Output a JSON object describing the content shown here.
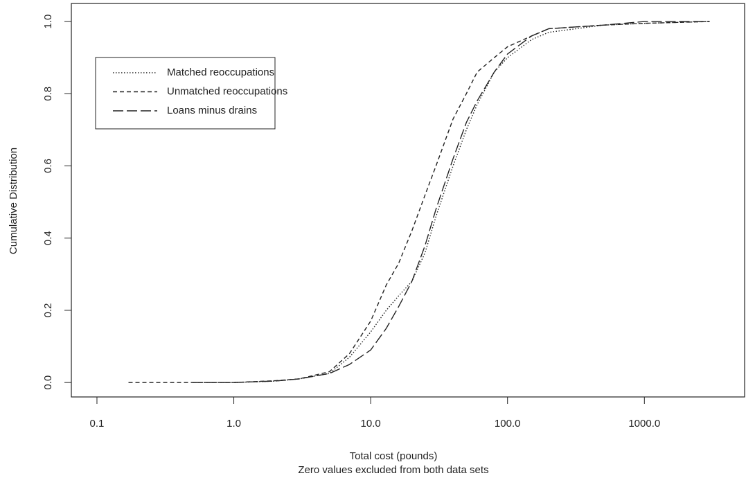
{
  "chart_data": {
    "type": "line",
    "xlabel": "Total cost (pounds)",
    "xlabel_note": "Zero values excluded from both data sets",
    "ylabel": "Cumulative Distribution",
    "xscale": "log",
    "xlim": [
      0.065,
      5400
    ],
    "ylim": [
      -0.04,
      1.05
    ],
    "xticks": [
      0.1,
      {
        "value": 1,
        "label": "1.0"
      },
      {
        "value": 10,
        "label": "10.0"
      },
      {
        "value": 100,
        "label": "100.0"
      },
      {
        "value": 1000,
        "label": "1000.0"
      }
    ],
    "yticks": [
      {
        "value": 0,
        "label": "0.0"
      },
      0.2,
      0.4,
      0.6,
      0.8,
      {
        "value": 1,
        "label": "1.0"
      }
    ],
    "grid": false,
    "legend": "upper left",
    "series": [
      {
        "name": "Matched reoccupations",
        "color": "#222222",
        "dash": "dotted",
        "x": [
          0.5,
          1,
          2,
          3,
          5,
          7,
          10,
          13,
          16,
          20,
          25,
          30,
          40,
          50,
          60,
          80,
          100,
          150,
          200,
          500,
          1000,
          3000
        ],
        "values": [
          0,
          0,
          0.004,
          0.01,
          0.025,
          0.07,
          0.14,
          0.2,
          0.24,
          0.28,
          0.36,
          0.46,
          0.6,
          0.7,
          0.77,
          0.86,
          0.9,
          0.95,
          0.97,
          0.99,
          0.995,
          1
        ]
      },
      {
        "name": "Unmatched reoccupations",
        "color": "#222222",
        "dash": "dashed",
        "x": [
          0.17,
          1,
          2,
          3,
          5,
          7,
          10,
          13,
          16,
          20,
          25,
          30,
          40,
          50,
          60,
          80,
          100,
          150,
          200,
          500,
          1000,
          3000
        ],
        "values": [
          0,
          0,
          0.005,
          0.01,
          0.03,
          0.08,
          0.17,
          0.27,
          0.33,
          0.42,
          0.52,
          0.6,
          0.73,
          0.8,
          0.86,
          0.9,
          0.93,
          0.96,
          0.98,
          0.99,
          0.995,
          1
        ]
      },
      {
        "name": "Loans minus drains",
        "color": "#222222",
        "dash": "longdash",
        "x": [
          0.5,
          1,
          2,
          3,
          5,
          7,
          10,
          13,
          16,
          20,
          25,
          30,
          40,
          50,
          60,
          80,
          100,
          150,
          200,
          500,
          1000,
          3000
        ],
        "values": [
          0,
          0,
          0.004,
          0.01,
          0.025,
          0.05,
          0.09,
          0.15,
          0.21,
          0.28,
          0.38,
          0.48,
          0.62,
          0.72,
          0.78,
          0.86,
          0.91,
          0.96,
          0.98,
          0.99,
          1,
          1
        ]
      }
    ]
  }
}
